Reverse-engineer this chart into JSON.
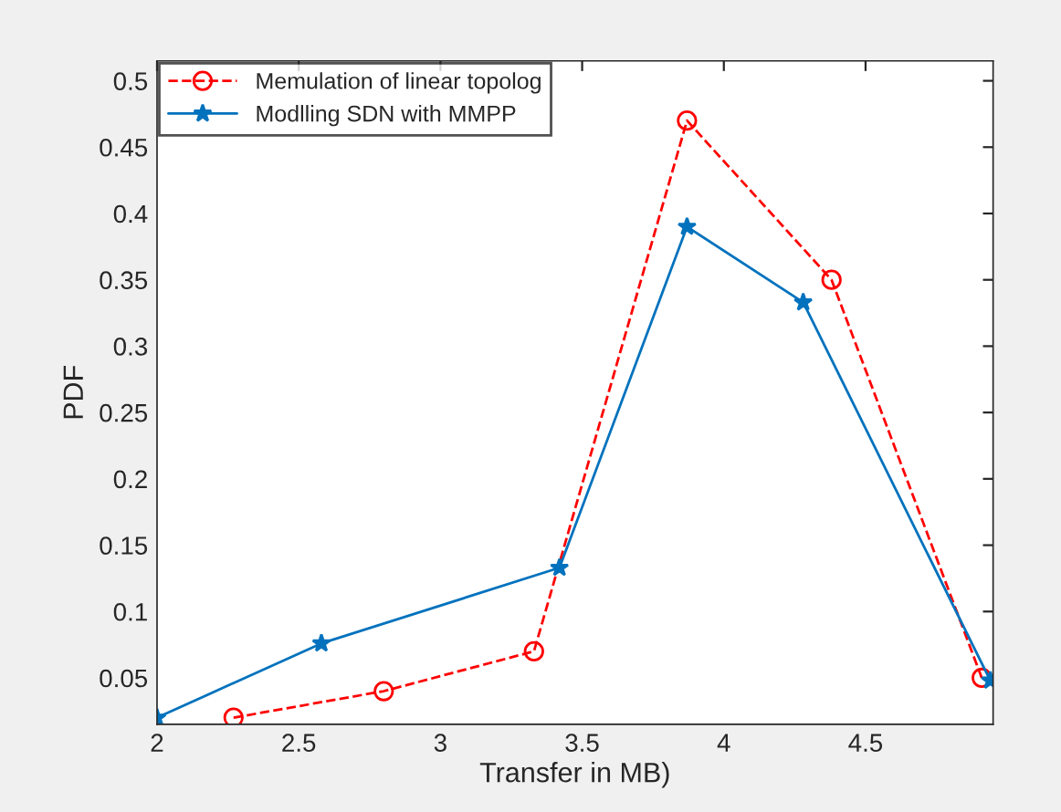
{
  "chart_data": {
    "type": "line",
    "xlabel": "Transfer in MB)",
    "ylabel": "PDF",
    "xlim": [
      2,
      4.95
    ],
    "xticks": [
      2,
      2.5,
      3,
      3.5,
      4,
      4.5
    ],
    "ylim": [
      0.015,
      0.515
    ],
    "yticks": [
      0.05,
      0.1,
      0.15,
      0.2,
      0.25,
      0.3,
      0.35,
      0.4,
      0.45,
      0.5
    ],
    "grid": false,
    "legend": "top left",
    "series": [
      {
        "name": "Memulation of linear topolog",
        "color": "#ff0000",
        "marker": "circle",
        "line_style": "dashed",
        "x": [
          2.27,
          2.8,
          3.33,
          3.87,
          4.38,
          4.91
        ],
        "values": [
          0.02,
          0.04,
          0.07,
          0.47,
          0.35,
          0.05
        ]
      },
      {
        "name": "Modlling SDN with MMPP",
        "color": "#0072bd",
        "marker": "star",
        "line_style": "solid",
        "x": [
          2,
          2.58,
          3.42,
          3.87,
          4.28,
          4.94
        ],
        "values": [
          0.02,
          0.076,
          0.133,
          0.39,
          0.333,
          0.048
        ]
      }
    ]
  }
}
